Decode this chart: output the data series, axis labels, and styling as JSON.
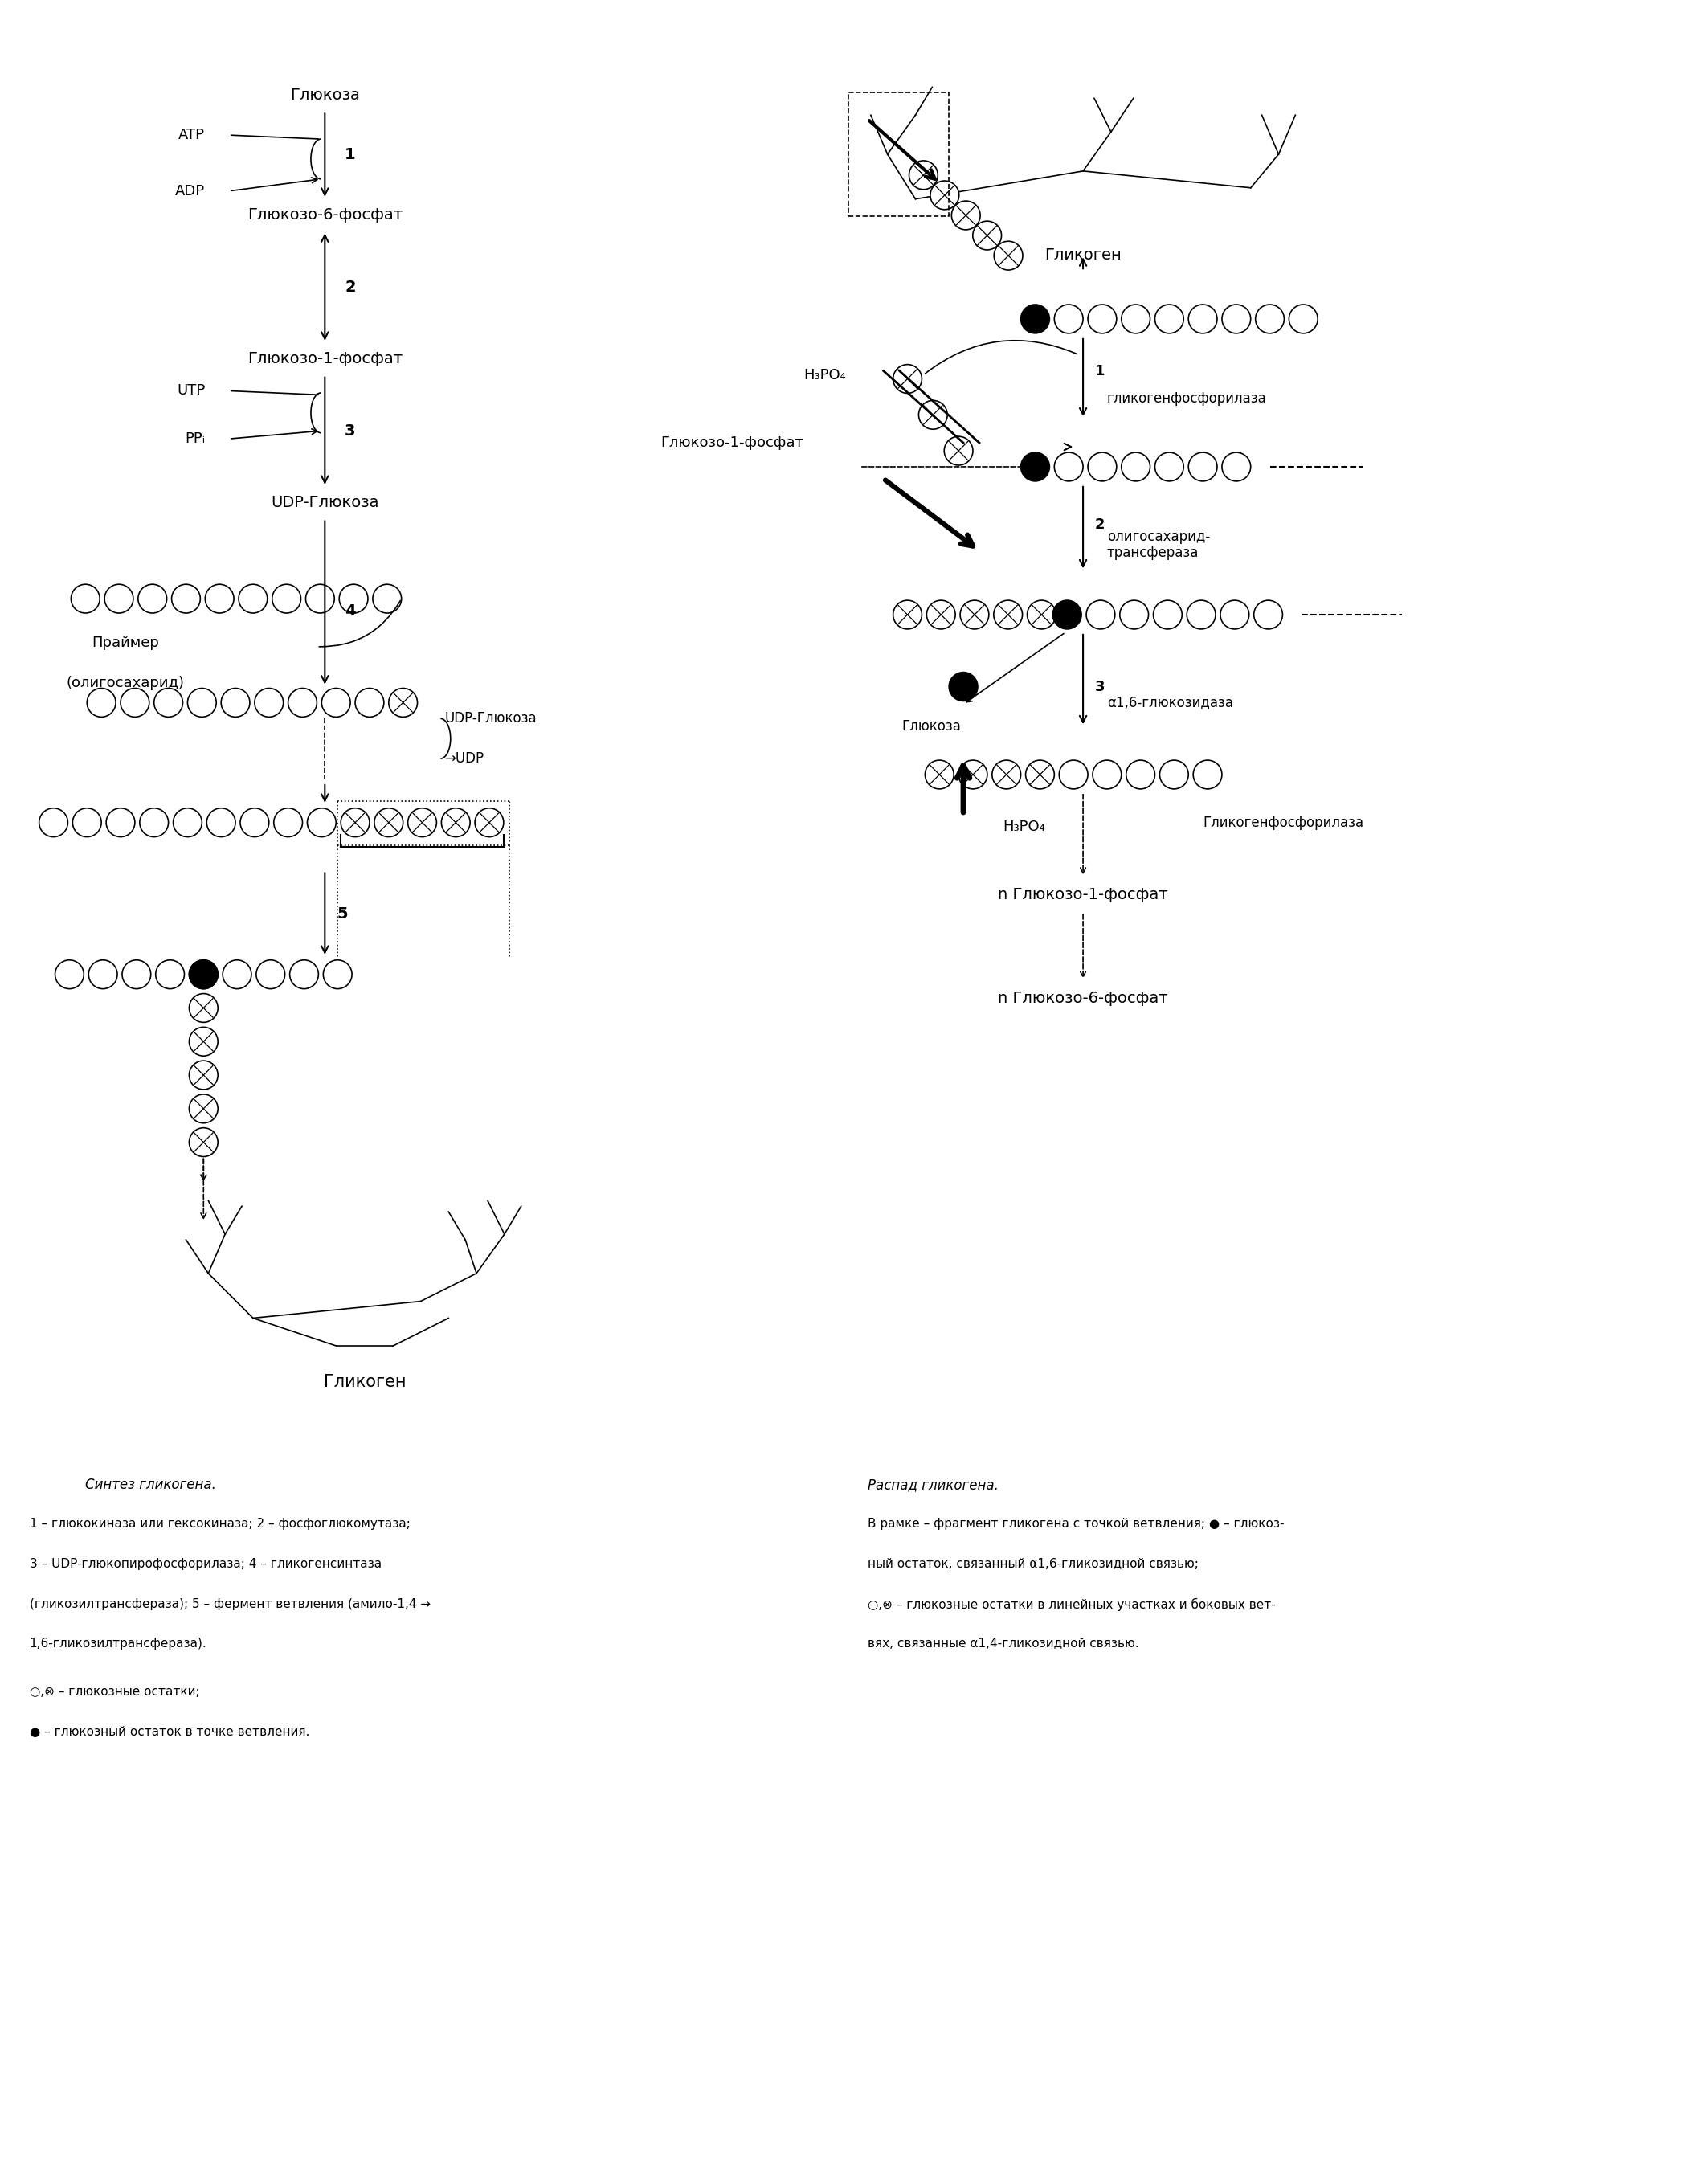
{
  "bg_color": "#ffffff",
  "left_title_compounds": [
    "Глюкоза",
    "Глюкозо-6-фосфат",
    "Глюкозо-1-фосфат",
    "UDP-Глюкоза"
  ],
  "left_side_labels": [
    "ATP",
    "ADP",
    "UTP",
    "PPᵢ"
  ],
  "step_labels_left": [
    "1",
    "2",
    "3",
    "4",
    "5"
  ],
  "right_step_labels": [
    "1",
    "2",
    "3"
  ],
  "right_enzyme_labels": [
    "гликогенфосфорилаза",
    "олигосахарид-\nтрансфераза",
    "α1,6-глюкозидаза"
  ],
  "right_compound_labels": [
    "Гликоген",
    "H₃PO₄",
    "Глюкозо-1-фосфат",
    "Глюкоза",
    "H₃PO₄",
    "Гликогенфосфорилаза",
    "n Глюкозо-1-фосфат",
    "n Глюкозо-6-фосфат"
  ],
  "bottom_text_left": [
    "Синтез гликогена.",
    "1 – глюкокиназа или гексокиназа; 2 – фосфоглюкомутаза;",
    "3 – UDP-глюкопирофосфорилаза; 4 – гликогенсинтаза",
    "(гликозилтрансфераза); 5 – фермент ветвления (амило-1,4 →",
    "1,6-гликозилтрансфераза).",
    "○,⊗ – глюкозные остатки;",
    "● – глюкозный остаток в точке ветвления."
  ],
  "bottom_text_right": [
    "Распад гликогена.",
    "В рамке – фрагмент гликогена с точкой ветвления; ● – глюкоз-",
    "ный остаток, связанный α1,6-гликозидной связью;",
    "○,⊗ – глюкозные остатки в линейных участках и боковых вет-",
    "вях, связанные α1,4-гликозидной связью."
  ]
}
